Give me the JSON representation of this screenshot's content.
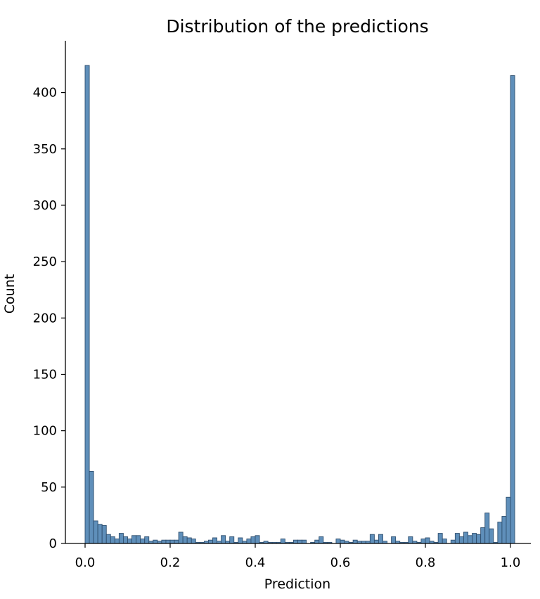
{
  "chart_data": {
    "type": "bar",
    "title": "Distribution of the predictions",
    "xlabel": "Prediction",
    "ylabel": "Count",
    "xlim": [
      -0.03,
      1.03
    ],
    "ylim": [
      0,
      445
    ],
    "x_ticks": [
      0.0,
      0.2,
      0.4,
      0.6,
      0.8,
      1.0
    ],
    "x_tick_labels": [
      "0.0",
      "0.2",
      "0.4",
      "0.6",
      "0.8",
      "1.0"
    ],
    "y_ticks": [
      0,
      50,
      100,
      150,
      200,
      250,
      300,
      350,
      400
    ],
    "y_tick_labels": [
      "0",
      "50",
      "100",
      "150",
      "200",
      "250",
      "300",
      "350",
      "400"
    ],
    "grid": false,
    "bar_color": "#5f8fba",
    "bar_edge_color": "#2f4f6f",
    "bin_start": 0.0,
    "bin_width": 0.01,
    "values": [
      424,
      64,
      20,
      17,
      16,
      8,
      6,
      4,
      9,
      6,
      4,
      7,
      7,
      4,
      6,
      2,
      3,
      2,
      3,
      3,
      3,
      3,
      10,
      6,
      5,
      4,
      1,
      1,
      2,
      3,
      5,
      2,
      7,
      2,
      6,
      1,
      5,
      2,
      4,
      6,
      7,
      1,
      2,
      1,
      1,
      1,
      4,
      1,
      1,
      3,
      3,
      3,
      0,
      1,
      3,
      6,
      1,
      1,
      0,
      4,
      3,
      2,
      1,
      3,
      2,
      2,
      2,
      8,
      3,
      8,
      2,
      0,
      6,
      2,
      1,
      1,
      6,
      2,
      1,
      4,
      5,
      2,
      1,
      9,
      4,
      0,
      3,
      9,
      6,
      10,
      7,
      9,
      8,
      14,
      27,
      13,
      1,
      19,
      24,
      41,
      415
    ]
  }
}
